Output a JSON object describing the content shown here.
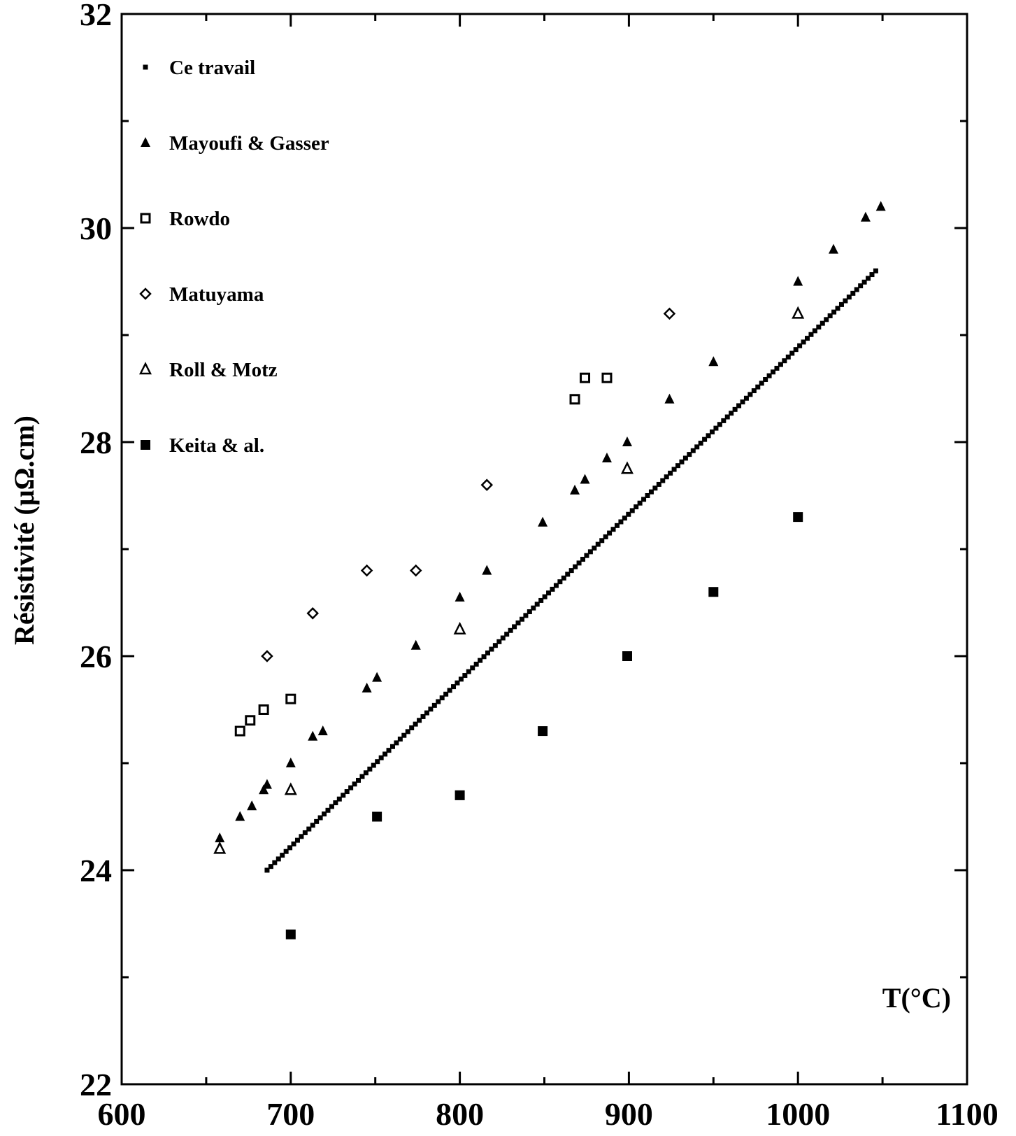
{
  "chart_data": {
    "type": "scatter",
    "title": "",
    "xlabel": "T(°C)",
    "ylabel": "Résistivité (μΩ.cm)",
    "xlim": [
      600,
      1100
    ],
    "ylim": [
      22,
      32
    ],
    "x_ticks": [
      600,
      700,
      800,
      900,
      1000,
      1100
    ],
    "y_ticks": [
      22,
      24,
      26,
      28,
      30,
      32
    ],
    "grid": false,
    "legend_position": "top-left",
    "series": [
      {
        "name": "Ce travail",
        "marker": "small-filled-square",
        "line_from": [
          686,
          24.0
        ],
        "line_to": [
          1046,
          29.6
        ],
        "points": []
      },
      {
        "name": "Mayoufi & Gasser",
        "marker": "filled-triangle",
        "points": [
          [
            658,
            24.3
          ],
          [
            670,
            24.5
          ],
          [
            677,
            24.6
          ],
          [
            684,
            24.75
          ],
          [
            686,
            24.8
          ],
          [
            700,
            25.0
          ],
          [
            713,
            25.25
          ],
          [
            719,
            25.3
          ],
          [
            745,
            25.7
          ],
          [
            751,
            25.8
          ],
          [
            774,
            26.1
          ],
          [
            800,
            26.55
          ],
          [
            816,
            26.8
          ],
          [
            849,
            27.25
          ],
          [
            868,
            27.55
          ],
          [
            874,
            27.65
          ],
          [
            887,
            27.85
          ],
          [
            899,
            28.0
          ],
          [
            924,
            28.4
          ],
          [
            950,
            28.75
          ],
          [
            1000,
            29.5
          ],
          [
            1021,
            29.8
          ],
          [
            1040,
            30.1
          ],
          [
            1049,
            30.2
          ]
        ]
      },
      {
        "name": "Rowdo",
        "marker": "hollow-square",
        "points": [
          [
            670,
            25.3
          ],
          [
            676,
            25.4
          ],
          [
            684,
            25.5
          ],
          [
            700,
            25.6
          ],
          [
            868,
            28.4
          ],
          [
            874,
            28.6
          ],
          [
            887,
            28.6
          ]
        ]
      },
      {
        "name": "Matuyama",
        "marker": "hollow-diamond",
        "points": [
          [
            686,
            26.0
          ],
          [
            713,
            26.4
          ],
          [
            745,
            26.8
          ],
          [
            774,
            26.8
          ],
          [
            816,
            27.6
          ],
          [
            924,
            29.2
          ]
        ]
      },
      {
        "name": "Roll & Motz",
        "marker": "hollow-triangle",
        "points": [
          [
            658,
            24.2
          ],
          [
            700,
            24.75
          ],
          [
            800,
            26.25
          ],
          [
            899,
            27.75
          ],
          [
            1000,
            29.2
          ]
        ]
      },
      {
        "name": "Keita & al.",
        "marker": "filled-square",
        "points": [
          [
            700,
            23.4
          ],
          [
            751,
            24.5
          ],
          [
            800,
            24.7
          ],
          [
            849,
            25.3
          ],
          [
            899,
            26.0
          ],
          [
            950,
            26.6
          ],
          [
            1000,
            27.3
          ]
        ]
      }
    ]
  }
}
